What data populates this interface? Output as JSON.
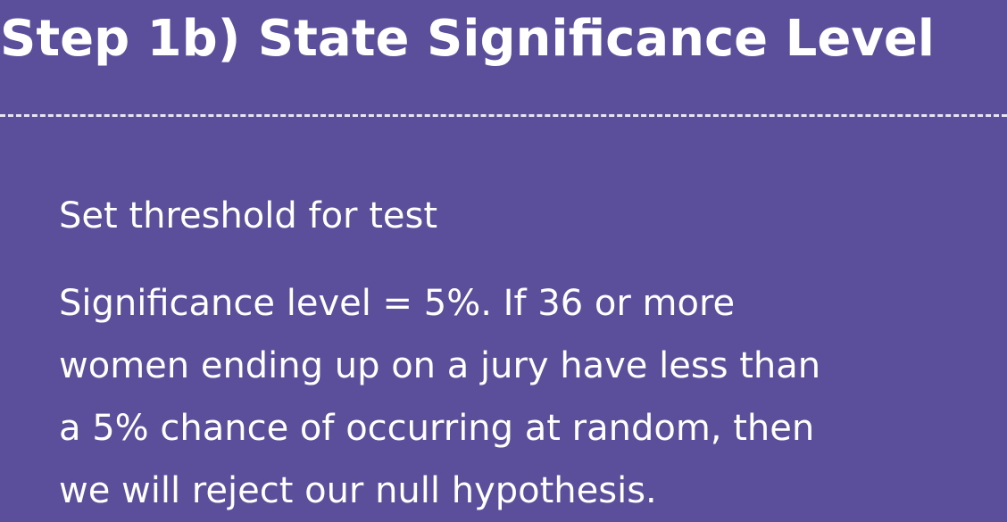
{
  "slide": {
    "title": "Step 1b) State Significance Level",
    "subheading": "Set threshold for test",
    "body_lines": [
      "Significance level = 5%. If 36 or more",
      "women ending up on a jury have less than",
      "a 5% chance of occurring at random, then",
      "we will reject our null hypothesis."
    ]
  },
  "colors": {
    "background": "#5b4f9b",
    "text": "#ffffff",
    "divider": "#e9e6f3"
  }
}
